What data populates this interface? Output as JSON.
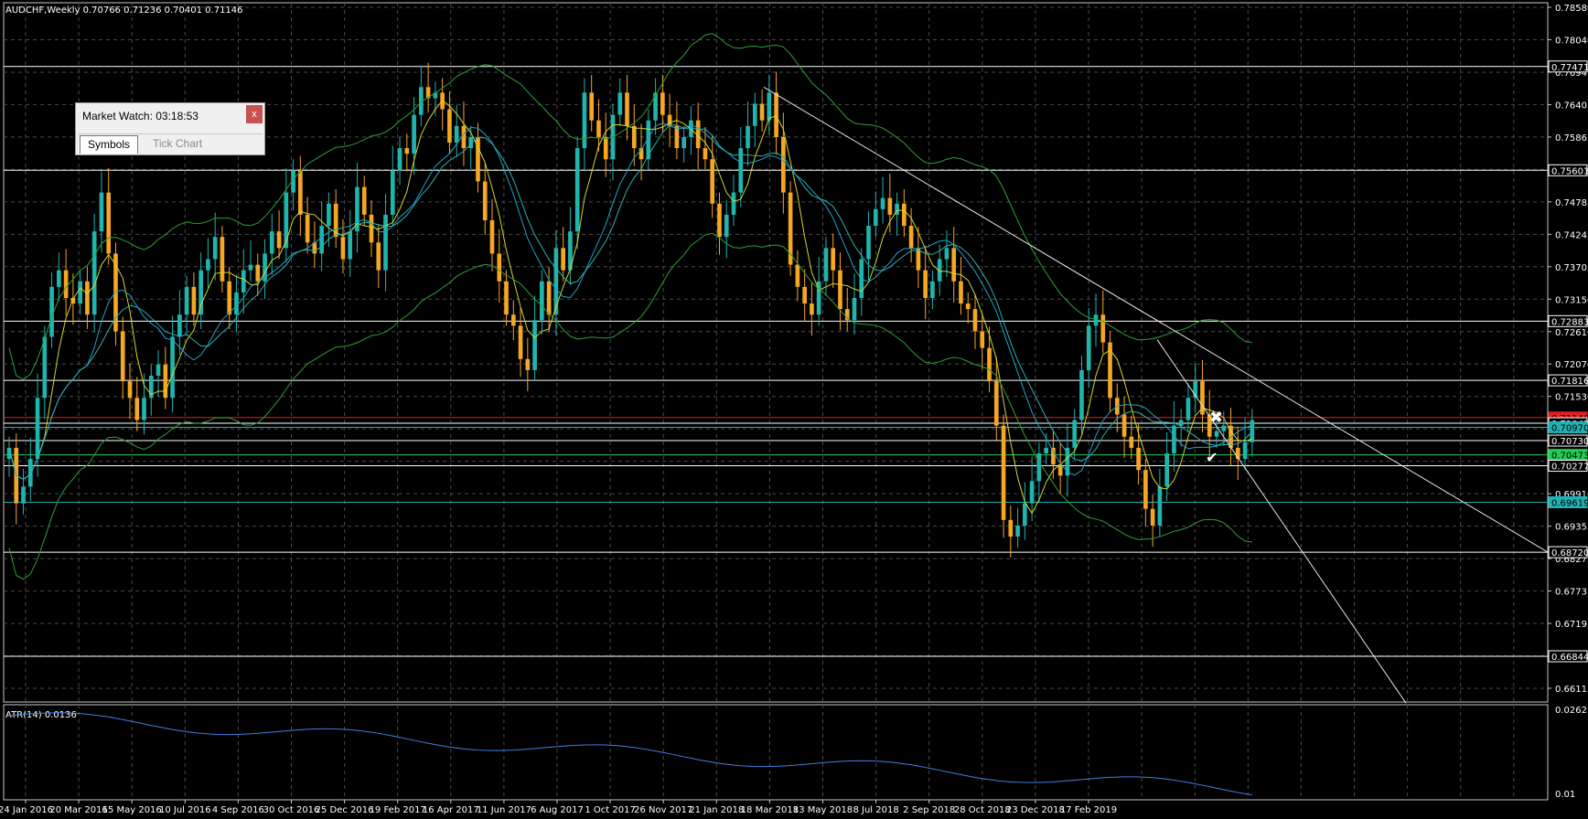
{
  "chart_data": {
    "type": "candlestick",
    "title": "AUDCHF,Weekly  0.70766 0.71236 0.70401 0.71146",
    "y_ticks": [
      "0.78580",
      "0.78040",
      "0.76945",
      "0.76405",
      "0.75865",
      "0.75320",
      "0.74785",
      "0.74245",
      "0.73705",
      "0.73150",
      "0.72610",
      "0.72070",
      "0.71530",
      "0.70990",
      "0.70277",
      "0.69910",
      "0.69355",
      "0.68275",
      "0.67735",
      "0.67195",
      "0.66655",
      "0.66115"
    ],
    "x_ticks": [
      "24 Jan 2016",
      "20 Mar 2016",
      "15 May 2016",
      "10 Jul 2016",
      "4 Sep 2016",
      "30 Oct 2016",
      "25 Dec 2016",
      "19 Feb 2017",
      "16 Apr 2017",
      "11 Jun 2017",
      "6 Aug 2017",
      "1 Oct 2017",
      "26 Nov 2017",
      "21 Jan 2018",
      "18 Mar 2018",
      "13 May 2018",
      "8 Jul 2018",
      "2 Sep 2018",
      "28 Oct 2018",
      "23 Dec 2018",
      "17 Feb 2019"
    ],
    "price_labels": [
      {
        "text": "0.77471",
        "price": 0.77471,
        "color": "#ffffff",
        "line": "#ffffff"
      },
      {
        "text": "0.75601",
        "price": 0.75601,
        "color": "#ffffff",
        "line": "#ffffff"
      },
      {
        "text": "0.72883",
        "price": 0.72883,
        "color": "#ffffff",
        "line": "#ffffff"
      },
      {
        "text": "0.71816",
        "price": 0.71816,
        "color": "#ffffff",
        "line": "#ffffff"
      },
      {
        "text": "0.71146",
        "price": 0.71146,
        "color": "#e02020",
        "line": "#e02020"
      },
      {
        "text": "0.71043",
        "price": 0.71043,
        "color": "#ffffff",
        "line": "#ffffff"
      },
      {
        "text": "0.70970",
        "price": 0.7097,
        "color": "#20b2b2",
        "line": "#20b2b2"
      },
      {
        "text": "0.70730",
        "price": 0.7073,
        "color": "#ffffff",
        "line": "#ffffff"
      },
      {
        "text": "0.70473",
        "price": 0.70473,
        "color": "#22cc55",
        "line": "#22cc55"
      },
      {
        "text": "0.70277",
        "price": 0.70277,
        "color": "#ffffff",
        "line": "#ffffff"
      },
      {
        "text": "0.69619",
        "price": 0.69619,
        "color": "#20b2b2",
        "line": "#20b2b2"
      },
      {
        "text": "0.68720",
        "price": 0.6872,
        "color": "#ffffff",
        "line": "#ffffff"
      },
      {
        "text": "0.66844",
        "price": 0.66844,
        "color": "#ffffff",
        "line": "#ffffff"
      }
    ],
    "price_range": [
      0.6602,
      0.7862
    ],
    "candles_close": [
      0.706,
      0.696,
      0.699,
      0.704,
      0.715,
      0.726,
      0.735,
      0.738,
      0.733,
      0.732,
      0.736,
      0.73,
      0.745,
      0.752,
      0.741,
      0.727,
      0.718,
      0.715,
      0.711,
      0.715,
      0.719,
      0.721,
      0.715,
      0.726,
      0.73,
      0.735,
      0.73,
      0.738,
      0.74,
      0.744,
      0.736,
      0.73,
      0.734,
      0.738,
      0.739,
      0.736,
      0.741,
      0.745,
      0.742,
      0.752,
      0.756,
      0.748,
      0.743,
      0.741,
      0.746,
      0.75,
      0.744,
      0.74,
      0.745,
      0.753,
      0.748,
      0.743,
      0.738,
      0.748,
      0.756,
      0.76,
      0.759,
      0.766,
      0.771,
      0.769,
      0.77,
      0.767,
      0.761,
      0.764,
      0.76,
      0.762,
      0.754,
      0.747,
      0.741,
      0.736,
      0.73,
      0.728,
      0.722,
      0.72,
      0.729,
      0.736,
      0.73,
      0.742,
      0.738,
      0.745,
      0.76,
      0.77,
      0.765,
      0.762,
      0.758,
      0.766,
      0.77,
      0.764,
      0.76,
      0.758,
      0.765,
      0.77,
      0.766,
      0.764,
      0.76,
      0.762,
      0.765,
      0.76,
      0.758,
      0.75,
      0.744,
      0.748,
      0.752,
      0.76,
      0.764,
      0.768,
      0.765,
      0.77,
      0.762,
      0.752,
      0.739,
      0.735,
      0.732,
      0.73,
      0.736,
      0.742,
      0.738,
      0.731,
      0.729,
      0.733,
      0.74,
      0.746,
      0.749,
      0.751,
      0.748,
      0.75,
      0.746,
      0.742,
      0.738,
      0.733,
      0.736,
      0.74,
      0.742,
      0.736,
      0.732,
      0.731,
      0.727,
      0.724,
      0.718,
      0.71,
      0.693,
      0.69,
      0.692,
      0.696,
      0.7,
      0.705,
      0.706,
      0.703,
      0.701,
      0.706,
      0.711,
      0.72,
      0.728,
      0.73,
      0.725,
      0.715,
      0.712,
      0.708,
      0.706,
      0.702,
      0.695,
      0.692,
      0.699,
      0.705,
      0.71,
      0.711,
      0.715,
      0.718,
      0.712,
      0.708,
      0.709,
      0.71,
      0.706,
      0.704,
      0.707,
      0.711
    ],
    "atr": {
      "label": "ATR(14) 0.0136",
      "value": 0.0136,
      "y_ticks": [
        "0.0262",
        "0.01"
      ]
    },
    "market_watch": {
      "title": "Market Watch: 03:18:53",
      "close": "x",
      "tab_symbols": "Symbols",
      "tab_tick_chart": "Tick Chart"
    }
  }
}
